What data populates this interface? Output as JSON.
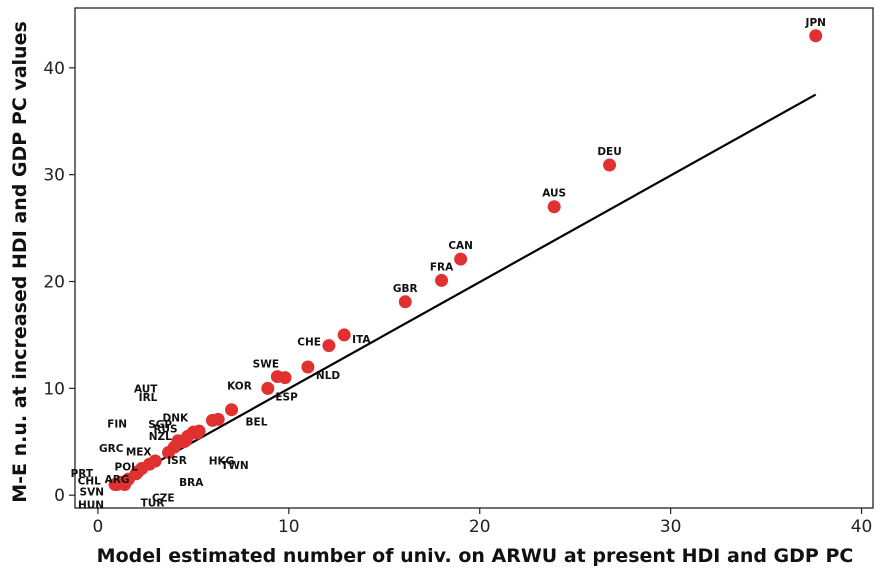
{
  "chart_data": {
    "type": "scatter",
    "xlabel": "Model estimated number of univ. on ARWU at present HDI and GDP PC",
    "ylabel": "M-E n.u. at increased HDI and GDP PC values",
    "xlim": [
      -1.2,
      40.6
    ],
    "ylim": [
      -1.2,
      45.6
    ],
    "x_ticks": [
      0,
      10,
      20,
      30,
      40
    ],
    "y_ticks": [
      0,
      10,
      20,
      30,
      40
    ],
    "grid": false,
    "point_color": "#e03030",
    "fit_line": {
      "x": [
        0.9,
        37.6
      ],
      "y": [
        0.9,
        37.5
      ]
    },
    "points": [
      {
        "label": "JPN",
        "x": 37.6,
        "y": 43.0
      },
      {
        "label": "DEU",
        "x": 26.8,
        "y": 30.9
      },
      {
        "label": "AUS",
        "x": 23.9,
        "y": 27.0
      },
      {
        "label": "CAN",
        "x": 19.0,
        "y": 22.1
      },
      {
        "label": "FRA",
        "x": 18.0,
        "y": 20.1
      },
      {
        "label": "GBR",
        "x": 16.1,
        "y": 18.1
      },
      {
        "label": "ITA",
        "x": 12.9,
        "y": 15.0
      },
      {
        "label": "CHE",
        "x": 12.1,
        "y": 14.0
      },
      {
        "label": "NLD",
        "x": 11.0,
        "y": 12.0
      },
      {
        "label": "SWE",
        "x": 9.8,
        "y": 11.0
      },
      {
        "label": "ESP",
        "x": 9.4,
        "y": 11.1
      },
      {
        "label": "KOR",
        "x": 8.9,
        "y": 10.0
      },
      {
        "label": "BEL",
        "x": 7.0,
        "y": 8.0
      },
      {
        "label": "DNK",
        "x": 6.3,
        "y": 7.1
      },
      {
        "label": "AUT",
        "x": 6.0,
        "y": 7.0
      },
      {
        "label": "SGP",
        "x": 5.3,
        "y": 6.0
      },
      {
        "label": "TWN",
        "x": 5.2,
        "y": 5.8
      },
      {
        "label": "IRL",
        "x": 5.0,
        "y": 5.9
      },
      {
        "label": "RUS",
        "x": 4.7,
        "y": 5.5
      },
      {
        "label": "HKG",
        "x": 4.6,
        "y": 5.1
      },
      {
        "label": "NZL",
        "x": 4.5,
        "y": 5.0
      },
      {
        "label": "FIN",
        "x": 4.2,
        "y": 5.1
      },
      {
        "label": "ISR",
        "x": 4.0,
        "y": 4.5
      },
      {
        "label": "MEX",
        "x": 3.7,
        "y": 4.0
      },
      {
        "label": "BRA",
        "x": 3.0,
        "y": 3.2
      },
      {
        "label": "GRC",
        "x": 2.7,
        "y": 2.9
      },
      {
        "label": "POL",
        "x": 2.3,
        "y": 2.5
      },
      {
        "label": "CZE",
        "x": 2.1,
        "y": 2.2
      },
      {
        "label": "PRT",
        "x": 2.0,
        "y": 2.0
      },
      {
        "label": "ARG",
        "x": 1.6,
        "y": 1.5
      },
      {
        "label": "TUR",
        "x": 1.4,
        "y": 1.0
      },
      {
        "label": "CHL",
        "x": 1.2,
        "y": 1.2
      },
      {
        "label": "SVN",
        "x": 1.0,
        "y": 1.0
      },
      {
        "label": "HUN",
        "x": 0.9,
        "y": 1.0
      }
    ]
  }
}
